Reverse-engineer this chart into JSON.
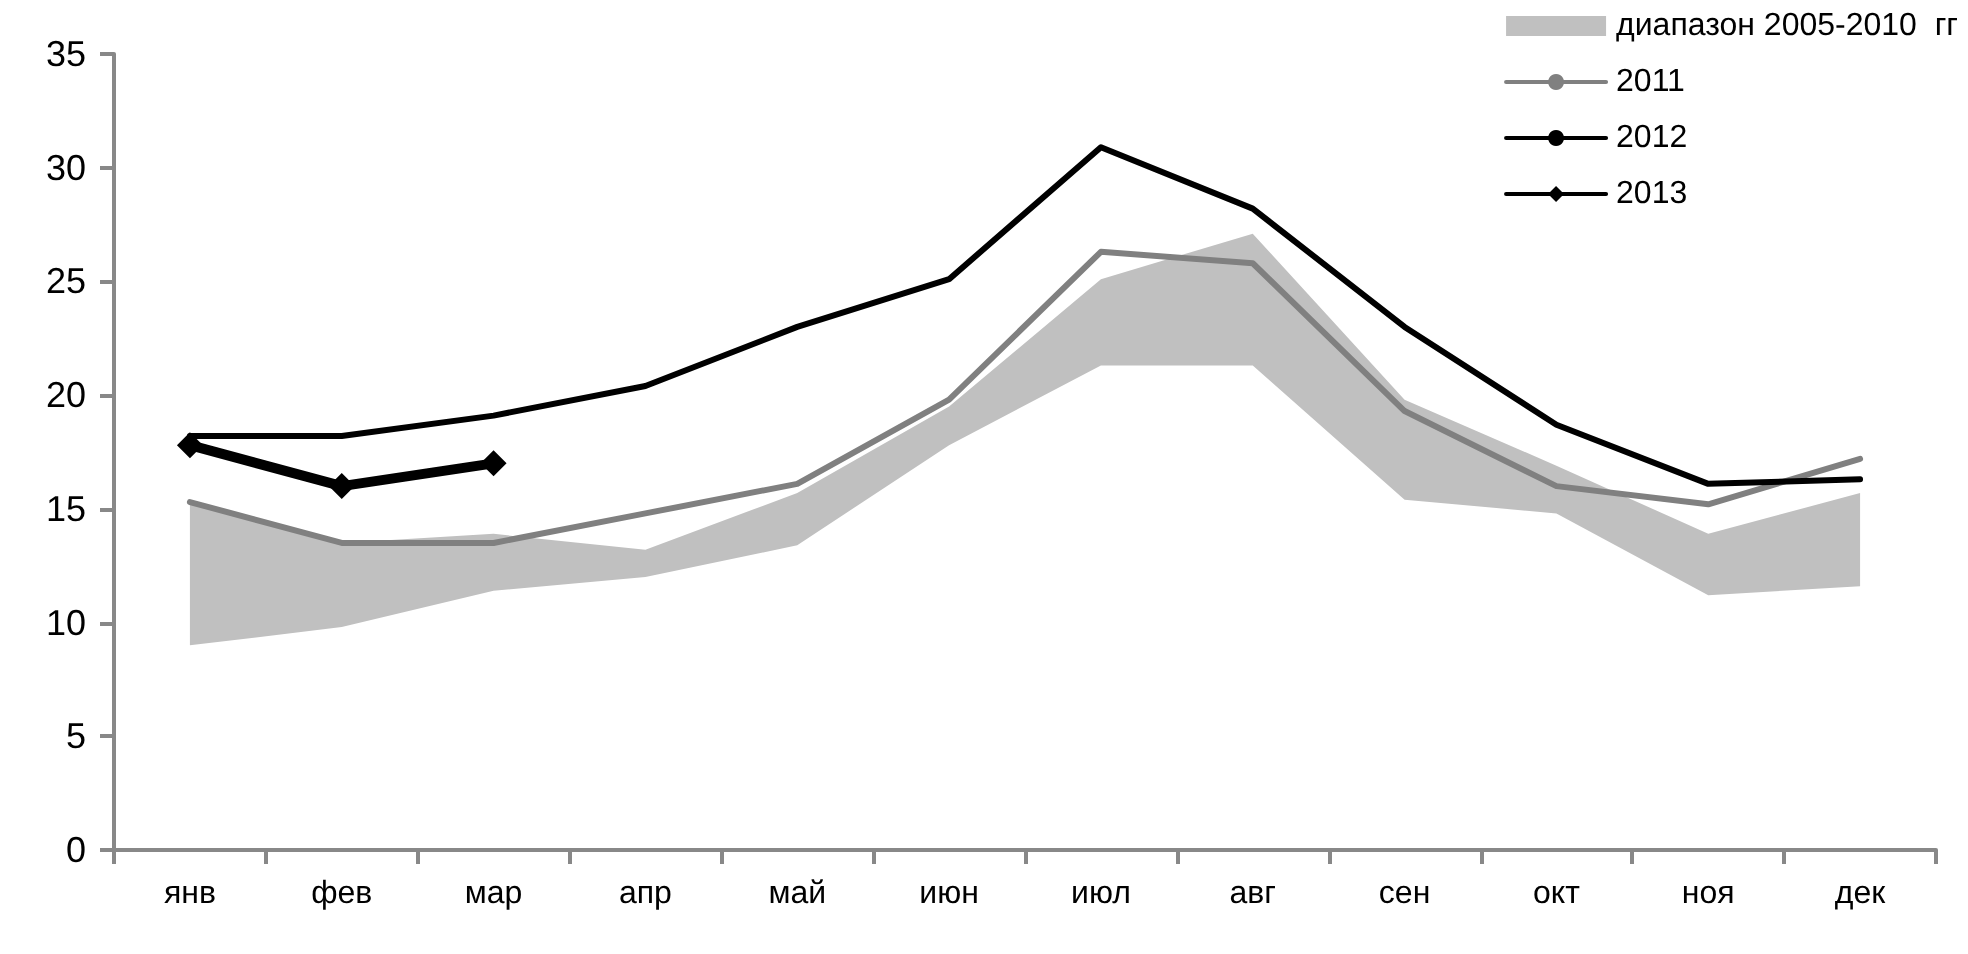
{
  "chart_data": {
    "type": "line",
    "categories": [
      "янв",
      "фев",
      "мар",
      "апр",
      "май",
      "июн",
      "июл",
      "авг",
      "сен",
      "окт",
      "ноя",
      "дек"
    ],
    "ylim": [
      0,
      35
    ],
    "yticks": [
      0,
      5,
      10,
      15,
      20,
      25,
      30,
      35
    ],
    "grid": false,
    "legend": "top right",
    "series": [
      {
        "name": "диапазон 2005-2010  гг",
        "type": "area",
        "color": "#c0c0c0",
        "values": [
          null,
          null,
          null,
          null,
          null,
          null,
          null,
          null,
          null,
          null,
          null,
          null
        ],
        "lower": [
          9.0,
          9.8,
          11.4,
          12.0,
          13.4,
          17.8,
          21.3,
          21.3,
          15.4,
          14.8,
          11.2,
          11.6
        ],
        "upper": [
          15.3,
          13.5,
          13.9,
          13.2,
          15.7,
          19.5,
          25.1,
          27.1,
          19.8,
          16.9,
          13.9,
          15.7
        ]
      },
      {
        "name": "2011",
        "type": "line",
        "color": "#808080",
        "marker": "none",
        "values": [
          15.3,
          13.5,
          13.5,
          14.8,
          16.1,
          19.8,
          26.3,
          25.8,
          19.3,
          16.0,
          15.2,
          17.2
        ]
      },
      {
        "name": "2012",
        "type": "line",
        "color": "#000000",
        "marker": "none",
        "values": [
          18.2,
          18.2,
          19.1,
          20.4,
          23.0,
          25.1,
          30.9,
          28.2,
          23.0,
          18.7,
          16.1,
          16.3
        ]
      },
      {
        "name": "2013",
        "type": "line",
        "color": "#000000",
        "marker": "diamond",
        "values": [
          17.8,
          16.0,
          17.0,
          null,
          null,
          null,
          null,
          null,
          null,
          null,
          null,
          null
        ]
      }
    ]
  }
}
